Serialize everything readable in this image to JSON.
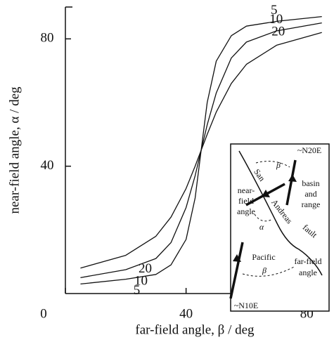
{
  "chart_data": {
    "type": "line",
    "x_label": "far-field angle, β / deg",
    "y_label": "near-field angle, α / deg",
    "x": [
      5,
      20,
      30,
      35,
      40,
      43,
      45,
      47,
      50,
      55,
      60,
      70,
      85
    ],
    "series": [
      {
        "name": "5",
        "color": "#111111",
        "values": [
          3,
          4.5,
          6,
          9,
          17,
          30,
          45,
          60,
          73,
          81,
          84,
          85.5,
          87
        ]
      },
      {
        "name": "10",
        "color": "#111111",
        "values": [
          5,
          7.5,
          11,
          16,
          27,
          37,
          45,
          53,
          63,
          74,
          79,
          82.5,
          85
        ]
      },
      {
        "name": "20",
        "color": "#111111",
        "values": [
          8,
          12,
          18,
          24,
          33,
          40,
          45,
          50,
          57,
          66,
          72,
          78,
          82
        ]
      }
    ],
    "xlim": [
      0,
      86
    ],
    "ylim": [
      0,
      90
    ],
    "xticks": [
      0,
      40,
      80
    ],
    "yticks": [
      40,
      80
    ],
    "inset": {
      "strike_top": "~N20E",
      "beta_top": "β",
      "fault_1": "San",
      "fault_2": "Andreas",
      "fault_3": "fault",
      "basin": [
        "basin",
        "and",
        "range"
      ],
      "near": [
        "near-",
        "field",
        "angle"
      ],
      "alpha": "α",
      "pacific": "Pacific",
      "beta_bottom": "β",
      "far": [
        "far-field",
        "angle"
      ],
      "strike_bottom": "~N10E"
    }
  }
}
